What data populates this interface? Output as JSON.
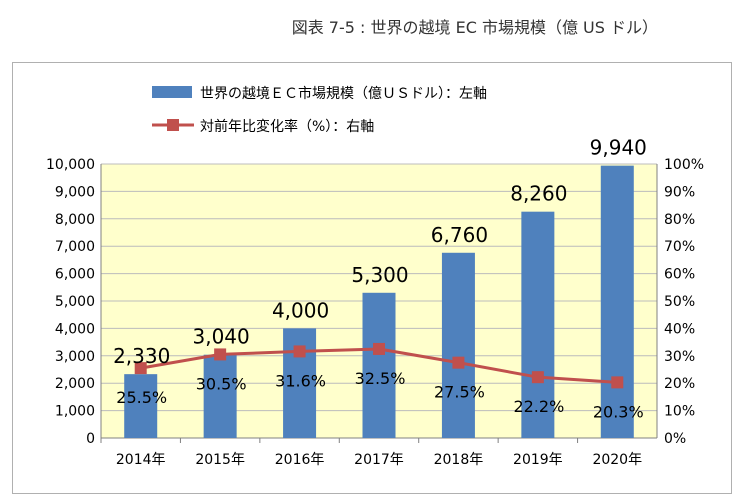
{
  "caption": "図表 7-5 : 世界の越境 EC 市場規模（億 US ドル）",
  "colors": {
    "bar": "#4f81bd",
    "line": "#c0504d",
    "plot_bg": "#ffffcc",
    "grid": "#bcbcbc"
  },
  "chart_data": {
    "type": "bar",
    "categories": [
      "2014年",
      "2015年",
      "2016年",
      "2017年",
      "2018年",
      "2019年",
      "2020年"
    ],
    "series": [
      {
        "name": "世界の越境ＥＣ市場規模（億ＵＳドル）：左軸",
        "axis": "left",
        "type": "bar",
        "values": [
          2330,
          3040,
          4000,
          5300,
          6760,
          8260,
          9940
        ],
        "labels": [
          "2,330",
          "3,040",
          "4,000",
          "5,300",
          "6,760",
          "8,260",
          "9,940"
        ]
      },
      {
        "name": "対前年比変化率（%）：右軸",
        "axis": "right",
        "type": "line",
        "values": [
          25.5,
          30.5,
          31.6,
          32.5,
          27.5,
          22.2,
          20.3
        ],
        "labels": [
          "25.5%",
          "30.5%",
          "31.6%",
          "32.5%",
          "27.5%",
          "22.2%",
          "20.3%"
        ]
      }
    ],
    "y_left": {
      "ylim": [
        0,
        10000
      ],
      "ticks": [
        "0",
        "1,000",
        "2,000",
        "3,000",
        "4,000",
        "5,000",
        "6,000",
        "7,000",
        "8,000",
        "9,000",
        "10,000"
      ]
    },
    "y_right": {
      "ylim": [
        0,
        100
      ],
      "ticks": [
        "0%",
        "10%",
        "20%",
        "30%",
        "40%",
        "50%",
        "60%",
        "70%",
        "80%",
        "90%",
        "100%"
      ]
    },
    "grid": true,
    "legend_position": "top"
  }
}
